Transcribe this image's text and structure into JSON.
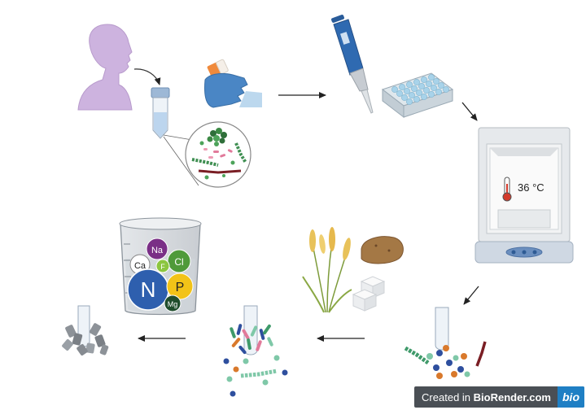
{
  "incubator": {
    "temperature": "36 °C"
  },
  "nutrients": {
    "N": "N",
    "P": "P",
    "Mg": "Mg",
    "Na": "Na",
    "Ca": "Ca",
    "F": "F",
    "Cl": "Cl"
  },
  "badge": {
    "prefix": "Created in ",
    "brand": "BioRender.com",
    "logo": "bio"
  }
}
